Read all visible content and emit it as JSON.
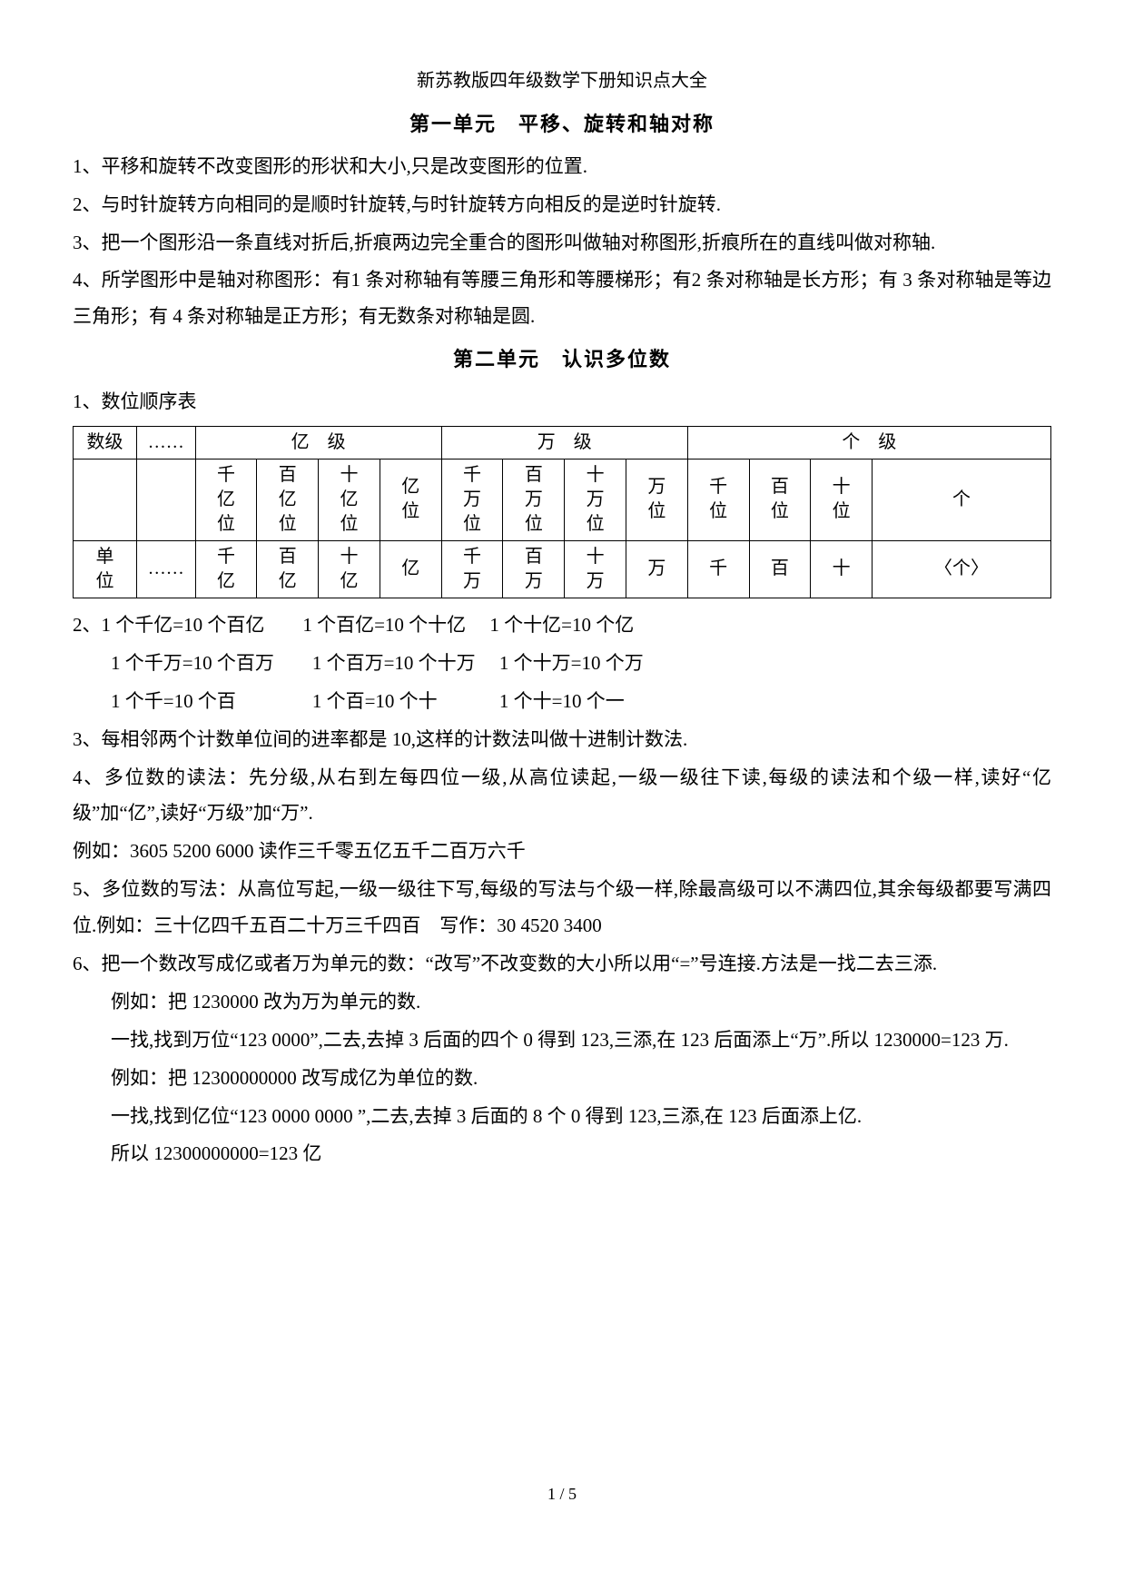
{
  "doc_title": "新苏教版四年级数学下册知识点大全",
  "unit1": {
    "title": "第一单元　平移、旋转和轴对称",
    "p1": "1、平移和旋转不改变图形的形状和大小,只是改变图形的位置.",
    "p2": "2、与时针旋转方向相同的是顺时针旋转,与时针旋转方向相反的是逆时针旋转.",
    "p3": "3、把一个图形沿一条直线对折后,折痕两边完全重合的图形叫做轴对称图形,折痕所在的直线叫做对称轴.",
    "p4": "4、所学图形中是轴对称图形：有1 条对称轴有等腰三角形和等腰梯形；有2 条对称轴是长方形；有 3 条对称轴是等边三角形；有 4 条对称轴是正方形；有无数条对称轴是圆."
  },
  "unit2": {
    "title": "第二单元　认识多位数",
    "p1": "1、数位顺序表",
    "table": {
      "r1": {
        "c1": "数级",
        "c2": "……",
        "c3": "亿　级",
        "c4": "万　级",
        "c5": "个　级"
      },
      "r2": {
        "c1": "",
        "c2": "",
        "d1": "千亿位",
        "d2": "百亿位",
        "d3": "十亿位",
        "d4": "亿位",
        "d5": "千万位",
        "d6": "百万位",
        "d7": "十万位",
        "d8": "万位",
        "d9": "千位",
        "d10": "百位",
        "d11": "十位",
        "d12": "个"
      },
      "r3": {
        "c1": "单位",
        "c2": "……",
        "d1": "千亿",
        "d2": "百亿",
        "d3": "十亿",
        "d4": "亿",
        "d5": "千万",
        "d6": "百万",
        "d7": "十万",
        "d8": "万",
        "d9": "千",
        "d10": "百",
        "d11": "十",
        "d12": "〈个〉"
      }
    },
    "p2a": "2、1 个千亿=10 个百亿　　1 个百亿=10 个十亿　 1 个十亿=10 个亿",
    "p2b": "1 个千万=10 个百万　　1 个百万=10 个十万　 1 个十万=10 个万",
    "p2c": "1 个千=10 个百　　　　1 个百=10 个十　　　 1 个十=10 个一",
    "p3": "3、每相邻两个计数单位间的进率都是 10,这样的计数法叫做十进制计数法.",
    "p4": "4、多位数的读法：先分级,从右到左每四位一级,从高位读起,一级一级往下读,每级的读法和个级一样,读好“亿级”加“亿”,读好“万级”加“万”.",
    "p4ex": "例如：3605 5200 6000 读作三千零五亿五千二百万六千",
    "p5": "5、多位数的写法：从高位写起,一级一级往下写,每级的写法与个级一样,除最高级可以不满四位,其余每级都要写满四位.例如：三十亿四千五百二十万三千四百　写作：30 4520 3400",
    "p6": "6、把一个数改写成亿或者万为单元的数：“改写”不改变数的大小所以用“=”号连接.方法是一找二去三添.",
    "p6ex1a": "例如：把 1230000 改为万为单元的数.",
    "p6ex1b": "一找,找到万位“123 0000”,二去,去掉 3 后面的四个 0 得到 123,三添,在 123 后面添上“万”.所以 1230000=123 万.",
    "p6ex2a": "例如：把 12300000000 改写成亿为单位的数.",
    "p6ex2b": "一找,找到亿位“123 0000 0000 ”,二去,去掉 3 后面的 8 个 0 得到 123,三添,在 123 后面添上亿.",
    "p6ex2c": "所以 12300000000=123 亿"
  },
  "footer": "1 / 5"
}
